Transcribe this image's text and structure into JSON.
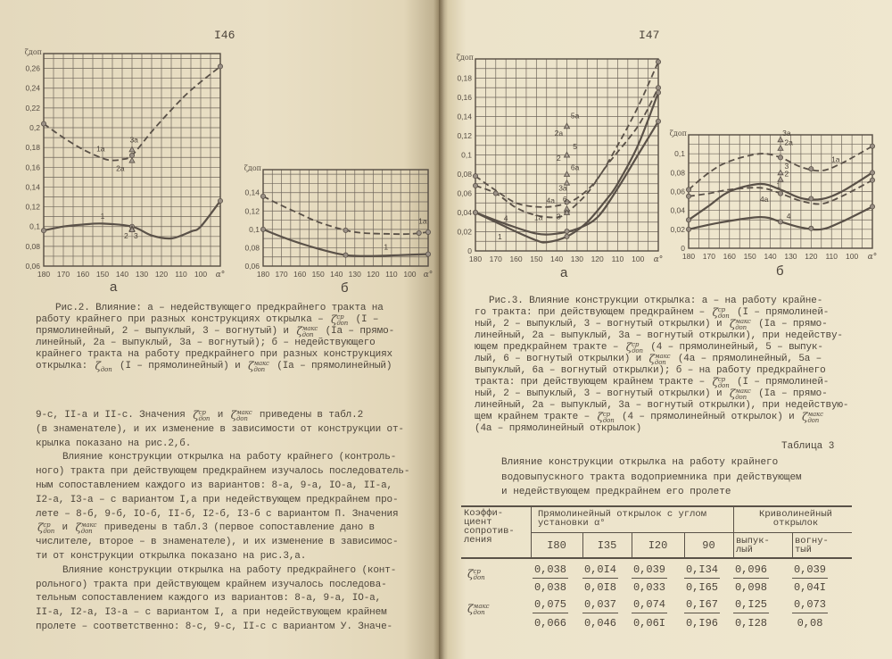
{
  "left_page": {
    "page_number": "I46",
    "caption_lines": [
      "Рис.2. Влияние: а – недействующего предкрайнего тракта на",
      "работу крайнего при разных конструкциях открылка – {ZCP} (I –",
      "прямолинейный, 2 – выпуклый, 3 – вогнутый) и {ZMAX} (Iа – прямо-",
      "линейный, 2а – выпуклый, 3а – вогнутый); б – недействующего",
      "крайнего тракта на работу предкрайнего при разных конструкциях",
      "открылка: {ZDOP} (I – прямолинейный) и {ZMAX} (Iа – прямолинейный)"
    ],
    "body_lines": [
      {
        "text": "9-с, II-а и II-с. Значения {ZCP} и {ZMAX} приведены в табл.2",
        "indent": false
      },
      {
        "text": "(в знаменателе), и их изменение в зависимости от конструкции от-",
        "indent": false
      },
      {
        "text": "крылка показано на рис.2,б.",
        "indent": false
      },
      {
        "text": "Влияние конструкции открылка на работу крайнего (контроль-",
        "indent": true
      },
      {
        "text": "ного) тракта при действующем предкрайнем изучалось последователь-",
        "indent": false
      },
      {
        "text": "ным сопоставлением каждого из вариантов: 8-а, 9-а, IО-а, II-а,",
        "indent": false
      },
      {
        "text": "I2-а, I3-а – с вариантом I,а при недействующем предкрайнем про-",
        "indent": false
      },
      {
        "text": "лете – 8-б, 9-б, IО-б, II-б, I2-б, I3-б с вариантом П. Значения",
        "indent": false
      },
      {
        "text": "{ZCP} и {ZMAX} приведены в табл.3 (первое сопоставление дано в",
        "indent": false
      },
      {
        "text": "числителе, второе – в знаменателе), и их изменение в зависимос-",
        "indent": false
      },
      {
        "text": "ти от конструкции открылка показано на рис.3,а.",
        "indent": false
      },
      {
        "text": "Влияние конструкции открылка на работу предкрайнего (конт-",
        "indent": true
      },
      {
        "text": "рольного) тракта при действующем крайнем изучалось последова-",
        "indent": false
      },
      {
        "text": "тельным сопоставлением каждого из вариантов: 8-а, 9-а, IО-а,",
        "indent": false
      },
      {
        "text": "II-а, I2-а, I3-а – с вариантом I, а при недействующем крайнем",
        "indent": false
      },
      {
        "text": "пролете – соответственно: 8-с, 9-с, II-с с вариантом У. Значе-",
        "indent": false
      }
    ]
  },
  "right_page": {
    "page_number": "I47",
    "caption_lines": [
      "Рис.3. Влияние конструкции открылка: а – на работу крайне-",
      "го тракта: при действующем предкрайнем – {ZCP} (I – прямолиней-",
      "ный, 2 – выпуклый, 3 – вогнутый открылки) и {ZMAX} (Iа – прямо-",
      "линейный, 2а – выпуклый, 3а – вогнутый открылки), при недейству-",
      "ющем предкрайнем тракте – {ZCP} (4 – прямолинейный, 5 – выпук-",
      "лый, 6 – вогнутый открылки) и {ZMAX} (4а – прямолинейный, 5а –",
      "выпуклый, 6а – вогнутый открылки); б – на работу предкрайнего",
      "тракта: при действующем крайнем тракте – {ZCP} (I – прямолиней-",
      "ный, 2 – выпуклый, 3 – вогнутый открылки) и {ZMAX} (Iа – прямо-",
      "линейный, 2а – выпуклый, 3а – вогнутый открылки), при недействую-",
      "щем крайнем тракте – {ZCP} (4 – прямолинейный открылок) и {ZMAX}",
      "(4а – прямолинейный открылок)"
    ],
    "table": {
      "label": "Таблица 3",
      "title_lines": [
        "Влияние конструкции открылка на работу крайнего",
        "водовыпускного тракта водоприемника при действующем",
        "и недействующем предкрайнем его пролете"
      ],
      "header_first_col": "Коэффи-\nциент\nсопротив-\nления",
      "group_straight": "Прямолинейный открылок с углом\nустановки α°",
      "group_curved": "Криволинейный\nоткрылок",
      "subheaders": [
        "I80",
        "I35",
        "I20",
        "90",
        "выпук-\nлый",
        "вогну-\nтый"
      ],
      "rows": [
        {
          "coef": "{ZCP}",
          "numerators": [
            "0,038",
            "0,0I4",
            "0,039",
            "0,I34",
            "0,096",
            "0,039"
          ],
          "denominators": [
            "0,038",
            "0,0I8",
            "0,033",
            "0,I65",
            "0,098",
            "0,04I"
          ]
        },
        {
          "coef": "{ZMAX}",
          "numerators": [
            "0,075",
            "0,037",
            "0,074",
            "0,I67",
            "0,I25",
            "0,073"
          ],
          "denominators": [
            "0,066",
            "0,046",
            "0,06I",
            "0,I96",
            "0,I28",
            "0,08"
          ]
        }
      ]
    }
  },
  "symbols": {
    "zeta": "ζ",
    "sup_avg": "ср",
    "sup_max": "макс",
    "sub_dop": "доп"
  },
  "colors": {
    "ink": "#4b433a",
    "grid": "#6f665b",
    "paper_left": "#e8dec4",
    "paper_right": "#eee6cd"
  },
  "chart_data": [
    {
      "type": "line",
      "panel_label": "а",
      "ylabel": "ζдоп",
      "xlabel": "α°",
      "xlim": [
        180,
        90
      ],
      "ylim": [
        0.06,
        0.275
      ],
      "grid": true,
      "xticks": [
        180,
        170,
        160,
        150,
        140,
        130,
        120,
        110,
        100
      ],
      "xtick_labels": [
        "180",
        "170",
        "160",
        "150",
        "140",
        "130",
        "120",
        "110",
        "100"
      ],
      "yticks": [
        0.06,
        0.08,
        0.1,
        0.12,
        0.14,
        0.16,
        0.18,
        0.2,
        0.22,
        0.24,
        0.26
      ],
      "ytick_labels": [
        "0,06",
        "0,08",
        "0,1",
        "0,12",
        "0,14",
        "0,16",
        "0,18",
        "0,2",
        "0,22",
        "0,24",
        "0,26"
      ],
      "series": [
        {
          "name": "1",
          "style": "solid",
          "x": [
            180,
            170,
            160,
            150,
            135,
            125,
            115,
            105,
            100,
            90
          ],
          "y": [
            0.096,
            0.1,
            0.102,
            0.103,
            0.1,
            0.091,
            0.088,
            0.095,
            0.1,
            0.126
          ],
          "markers": [
            180,
            135,
            90
          ]
        },
        {
          "name": "1а",
          "style": "dashed",
          "x": [
            180,
            170,
            160,
            150,
            145,
            140,
            135,
            125,
            115,
            105,
            90
          ],
          "y": [
            0.204,
            0.19,
            0.178,
            0.169,
            0.167,
            0.168,
            0.172,
            0.196,
            0.218,
            0.238,
            0.262
          ],
          "markers": [
            180,
            135,
            90
          ]
        }
      ],
      "points": [
        {
          "label": "2",
          "x": 135,
          "y": 0.098
        },
        {
          "label": "3",
          "x": 135,
          "y": 0.097
        },
        {
          "label": "2а",
          "x": 135,
          "y": 0.167
        },
        {
          "label": "3а",
          "x": 135,
          "y": 0.178
        }
      ],
      "annotations": [
        {
          "text": "1",
          "x": 150,
          "y": 0.108
        },
        {
          "text": "2",
          "x": 138,
          "y": 0.088
        },
        {
          "text": "3",
          "x": 133,
          "y": 0.088
        },
        {
          "text": "1а",
          "x": 151,
          "y": 0.176
        },
        {
          "text": "2а",
          "x": 141,
          "y": 0.156
        },
        {
          "text": "3а",
          "x": 134,
          "y": 0.185
        }
      ]
    },
    {
      "type": "line",
      "panel_label": "б",
      "ylabel": "ζдоп",
      "xlabel": "α°",
      "xlim": [
        180,
        90
      ],
      "ylim": [
        0.06,
        0.165
      ],
      "grid": true,
      "xticks": [
        180,
        170,
        160,
        150,
        140,
        130,
        120,
        110,
        100
      ],
      "xtick_labels": [
        "180",
        "170",
        "160",
        "150",
        "140",
        "130",
        "120",
        "110",
        "100"
      ],
      "yticks": [
        0.06,
        0.08,
        0.1,
        0.12,
        0.14
      ],
      "ytick_labels": [
        "0,06",
        "0,08",
        "0,1",
        "0,12",
        "0,14"
      ],
      "series": [
        {
          "name": "1",
          "style": "solid",
          "x": [
            180,
            170,
            160,
            150,
            135,
            120,
            105,
            90
          ],
          "y": [
            0.1,
            0.092,
            0.085,
            0.079,
            0.072,
            0.071,
            0.072,
            0.073
          ],
          "markers": [
            180,
            135,
            90
          ]
        },
        {
          "name": "1а",
          "style": "dashed",
          "x": [
            180,
            170,
            160,
            150,
            135,
            125,
            110,
            100,
            90
          ],
          "y": [
            0.136,
            0.126,
            0.117,
            0.108,
            0.099,
            0.096,
            0.095,
            0.095,
            0.097
          ],
          "markers": [
            180,
            135,
            95,
            90
          ]
        }
      ],
      "points": [],
      "annotations": [
        {
          "text": "1",
          "x": 113,
          "y": 0.078
        },
        {
          "text": "1а",
          "x": 93,
          "y": 0.106
        }
      ]
    },
    {
      "type": "line",
      "panel_label": "а",
      "ylabel": "ζдоп",
      "xlabel": "α°",
      "xlim": [
        180,
        90
      ],
      "ylim": [
        0,
        0.2
      ],
      "grid": true,
      "xticks": [
        180,
        170,
        160,
        150,
        140,
        130,
        120,
        110,
        100
      ],
      "xtick_labels": [
        "180",
        "170",
        "160",
        "150",
        "140",
        "130",
        "120",
        "110",
        "100"
      ],
      "yticks": [
        0,
        0.02,
        0.04,
        0.06,
        0.08,
        0.1,
        0.12,
        0.14,
        0.16,
        0.18
      ],
      "ytick_labels": [
        "0",
        "0,02",
        "0,04",
        "0,06",
        "0,08",
        "0,1",
        "0,12",
        "0,14",
        "0,16",
        "0,18"
      ],
      "series": [
        {
          "name": "1",
          "style": "solid",
          "x": [
            180,
            170,
            160,
            150,
            145,
            135,
            125,
            115,
            110,
            100,
            90
          ],
          "y": [
            0.04,
            0.03,
            0.02,
            0.011,
            0.009,
            0.015,
            0.03,
            0.055,
            0.07,
            0.11,
            0.165
          ],
          "markers": [
            180,
            135,
            90
          ]
        },
        {
          "name": "4",
          "style": "solid",
          "x": [
            180,
            165,
            150,
            140,
            130,
            120,
            110,
            100,
            90
          ],
          "y": [
            0.04,
            0.028,
            0.018,
            0.018,
            0.023,
            0.035,
            0.065,
            0.1,
            0.135
          ],
          "markers": [
            180,
            135,
            90
          ]
        },
        {
          "name": "1а",
          "style": "dashed",
          "x": [
            180,
            170,
            160,
            150,
            140,
            135,
            125,
            115,
            100,
            90
          ],
          "y": [
            0.068,
            0.06,
            0.045,
            0.037,
            0.035,
            0.04,
            0.06,
            0.09,
            0.13,
            0.17
          ],
          "markers": [
            180,
            170,
            135,
            90
          ]
        },
        {
          "name": "4а",
          "style": "dashed",
          "x": [
            180,
            170,
            160,
            150,
            140,
            130,
            120,
            110,
            100,
            90
          ],
          "y": [
            0.078,
            0.063,
            0.05,
            0.046,
            0.047,
            0.055,
            0.075,
            0.11,
            0.15,
            0.197
          ],
          "markers": [
            180,
            135,
            90
          ]
        }
      ],
      "points": [
        {
          "label": "2а",
          "x": 135,
          "y": 0.13
        },
        {
          "label": "5а",
          "x": 135,
          "y": 0.13
        },
        {
          "label": "5",
          "x": 135,
          "y": 0.1
        },
        {
          "label": "2",
          "x": 135,
          "y": 0.1
        },
        {
          "label": "6а",
          "x": 135,
          "y": 0.08
        },
        {
          "label": "3а",
          "x": 135,
          "y": 0.071
        },
        {
          "label": "6",
          "x": 135,
          "y": 0.044
        },
        {
          "label": "3",
          "x": 135,
          "y": 0.04
        }
      ],
      "annotations": [
        {
          "text": "5а",
          "x": 131,
          "y": 0.138
        },
        {
          "text": "2а",
          "x": 139,
          "y": 0.12
        },
        {
          "text": "5",
          "x": 131,
          "y": 0.106
        },
        {
          "text": "2",
          "x": 139,
          "y": 0.094
        },
        {
          "text": "6а",
          "x": 131,
          "y": 0.084
        },
        {
          "text": "3а",
          "x": 137,
          "y": 0.063
        },
        {
          "text": "6",
          "x": 136,
          "y": 0.051
        },
        {
          "text": "4а",
          "x": 143,
          "y": 0.05
        },
        {
          "text": "1а",
          "x": 149,
          "y": 0.032
        },
        {
          "text": "3",
          "x": 139,
          "y": 0.033
        },
        {
          "text": "4",
          "x": 165,
          "y": 0.031
        },
        {
          "text": "1",
          "x": 168,
          "y": 0.012
        }
      ]
    },
    {
      "type": "line",
      "panel_label": "б",
      "ylabel": "ζдоп",
      "xlabel": "α°",
      "xlim": [
        180,
        90
      ],
      "ylim": [
        0,
        0.12
      ],
      "grid": true,
      "xticks": [
        180,
        170,
        160,
        150,
        140,
        130,
        120,
        110,
        100
      ],
      "xtick_labels": [
        "180",
        "170",
        "160",
        "150",
        "140",
        "130",
        "120",
        "110",
        "100"
      ],
      "yticks": [
        0,
        0.02,
        0.04,
        0.06,
        0.08,
        0.1
      ],
      "ytick_labels": [
        "0",
        "0,02",
        "0,04",
        "0,06",
        "0,08",
        "0,1"
      ],
      "series": [
        {
          "name": "1а",
          "style": "dashed",
          "x": [
            180,
            170,
            160,
            145,
            135,
            125,
            115,
            105,
            90
          ],
          "y": [
            0.062,
            0.08,
            0.092,
            0.1,
            0.096,
            0.086,
            0.082,
            0.09,
            0.108
          ],
          "markers": [
            180,
            135,
            120,
            90
          ]
        },
        {
          "name": "1",
          "style": "solid",
          "x": [
            180,
            170,
            160,
            145,
            135,
            125,
            115,
            105,
            90
          ],
          "y": [
            0.03,
            0.045,
            0.06,
            0.068,
            0.062,
            0.053,
            0.052,
            0.06,
            0.08
          ],
          "markers": [
            180,
            120,
            90
          ]
        },
        {
          "name": "4а",
          "style": "dashed",
          "x": [
            180,
            170,
            160,
            145,
            135,
            125,
            115,
            105,
            90
          ],
          "y": [
            0.055,
            0.058,
            0.062,
            0.064,
            0.058,
            0.05,
            0.047,
            0.055,
            0.072
          ],
          "markers": [
            180,
            135,
            90
          ]
        },
        {
          "name": "4",
          "style": "solid",
          "x": [
            180,
            165,
            145,
            135,
            125,
            115,
            105,
            90
          ],
          "y": [
            0.02,
            0.027,
            0.033,
            0.028,
            0.022,
            0.02,
            0.028,
            0.044
          ],
          "markers": [
            180,
            135,
            120,
            90
          ]
        }
      ],
      "points": [
        {
          "label": "3а",
          "x": 135,
          "y": 0.115
        },
        {
          "label": "2а",
          "x": 135,
          "y": 0.106
        },
        {
          "label": "3",
          "x": 135,
          "y": 0.08
        },
        {
          "label": "2",
          "x": 135,
          "y": 0.073
        }
      ],
      "annotations": [
        {
          "text": "3а",
          "x": 132,
          "y": 0.119
        },
        {
          "text": "2а",
          "x": 131,
          "y": 0.109
        },
        {
          "text": "3",
          "x": 132,
          "y": 0.084
        },
        {
          "text": "2",
          "x": 132,
          "y": 0.076
        },
        {
          "text": "1а",
          "x": 108,
          "y": 0.091
        },
        {
          "text": "1",
          "x": 136,
          "y": 0.064
        },
        {
          "text": "4а",
          "x": 143,
          "y": 0.049
        },
        {
          "text": "4",
          "x": 131,
          "y": 0.031
        }
      ]
    }
  ]
}
